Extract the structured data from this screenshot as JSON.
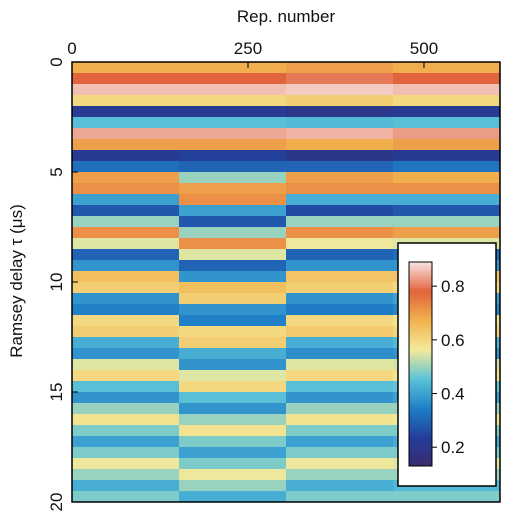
{
  "chart_data": {
    "type": "heatmap",
    "x_label": "Rep. number",
    "y_label": "Ramsey delay τ (μs)",
    "xlim": [
      0,
      608
    ],
    "xticks": [
      0,
      250,
      500
    ],
    "ylim": [
      0,
      20
    ],
    "yticks": [
      0,
      5,
      10,
      15,
      20
    ],
    "x": [
      76,
      228,
      380,
      532
    ],
    "y": [
      0.25,
      0.75,
      1.25,
      1.75,
      2.25,
      2.75,
      3.25,
      3.75,
      4.25,
      4.75,
      5.25,
      5.75,
      6.25,
      6.75,
      7.25,
      7.75,
      8.25,
      8.75,
      9.25,
      9.75,
      10.25,
      10.75,
      11.25,
      11.75,
      12.25,
      12.75,
      13.25,
      13.75,
      14.25,
      14.75,
      15.25,
      15.75,
      16.25,
      16.75,
      17.25,
      17.75,
      18.25,
      18.75,
      19.25,
      19.75
    ],
    "z": [
      [
        0.68,
        0.68,
        0.7,
        0.68
      ],
      [
        0.78,
        0.78,
        0.8,
        0.78
      ],
      [
        0.86,
        0.86,
        0.87,
        0.86
      ],
      [
        0.6,
        0.6,
        0.62,
        0.6
      ],
      [
        0.22,
        0.22,
        0.2,
        0.22
      ],
      [
        0.45,
        0.45,
        0.44,
        0.45
      ],
      [
        0.84,
        0.84,
        0.85,
        0.83
      ],
      [
        0.7,
        0.7,
        0.68,
        0.7
      ],
      [
        0.22,
        0.24,
        0.2,
        0.22
      ],
      [
        0.32,
        0.3,
        0.3,
        0.33
      ],
      [
        0.7,
        0.5,
        0.7,
        0.68
      ],
      [
        0.72,
        0.7,
        0.72,
        0.72
      ],
      [
        0.4,
        0.72,
        0.42,
        0.42
      ],
      [
        0.28,
        0.4,
        0.26,
        0.28
      ],
      [
        0.5,
        0.28,
        0.5,
        0.5
      ],
      [
        0.72,
        0.5,
        0.72,
        0.7
      ],
      [
        0.55,
        0.72,
        0.56,
        0.55
      ],
      [
        0.3,
        0.55,
        0.3,
        0.32
      ],
      [
        0.38,
        0.3,
        0.38,
        0.38
      ],
      [
        0.65,
        0.38,
        0.64,
        0.64
      ],
      [
        0.62,
        0.65,
        0.62,
        0.6
      ],
      [
        0.38,
        0.62,
        0.38,
        0.4
      ],
      [
        0.35,
        0.38,
        0.34,
        0.36
      ],
      [
        0.6,
        0.35,
        0.6,
        0.58
      ],
      [
        0.62,
        0.6,
        0.63,
        0.6
      ],
      [
        0.42,
        0.62,
        0.42,
        0.44
      ],
      [
        0.38,
        0.42,
        0.37,
        0.38
      ],
      [
        0.55,
        0.38,
        0.55,
        0.54
      ],
      [
        0.6,
        0.55,
        0.6,
        0.58
      ],
      [
        0.45,
        0.6,
        0.45,
        0.46
      ],
      [
        0.38,
        0.45,
        0.38,
        0.4
      ],
      [
        0.5,
        0.38,
        0.5,
        0.5
      ],
      [
        0.58,
        0.5,
        0.58,
        0.56
      ],
      [
        0.48,
        0.58,
        0.48,
        0.48
      ],
      [
        0.4,
        0.48,
        0.4,
        0.42
      ],
      [
        0.48,
        0.4,
        0.48,
        0.48
      ],
      [
        0.56,
        0.48,
        0.56,
        0.55
      ],
      [
        0.5,
        0.56,
        0.5,
        0.5
      ],
      [
        0.42,
        0.5,
        0.42,
        0.44
      ],
      [
        0.48,
        0.42,
        0.48,
        0.48
      ]
    ],
    "zlim": [
      0.13,
      0.89
    ],
    "colorbar_ticks": [
      0.2,
      0.4,
      0.6,
      0.8
    ],
    "colormap": [
      "#3a2a6e",
      "#233f9a",
      "#1f7fc8",
      "#5bc3d8",
      "#f3ea9a",
      "#f2b34e",
      "#e2633c",
      "#f7e3e0"
    ]
  }
}
